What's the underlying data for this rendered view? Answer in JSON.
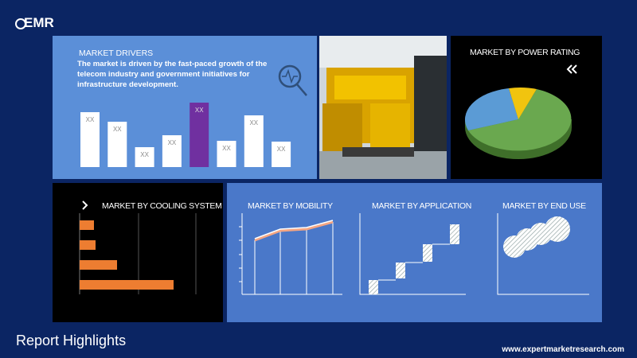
{
  "logo": {
    "name": "EMR"
  },
  "drivers": {
    "title": "MARKET DRIVERS",
    "text": "The market is driven by the fast-paced growth of the telecom industry and government initiatives for infrastructure development.",
    "bar_labels": [
      "XX",
      "XX",
      "XX",
      "XX",
      "XX",
      "XX",
      "XX",
      "XX"
    ]
  },
  "panels": {
    "power_rating": "MARKET BY POWER RATING",
    "cooling_system": "MARKET BY COOLING SYSTEM",
    "mobility": "MARKET BY MOBILITY",
    "application": "MARKET BY APPLICATION",
    "end_use": "MARKET BY END USE"
  },
  "footer": {
    "title": "Report Highlights",
    "url": "www.expertmarketresearch.com"
  }
}
